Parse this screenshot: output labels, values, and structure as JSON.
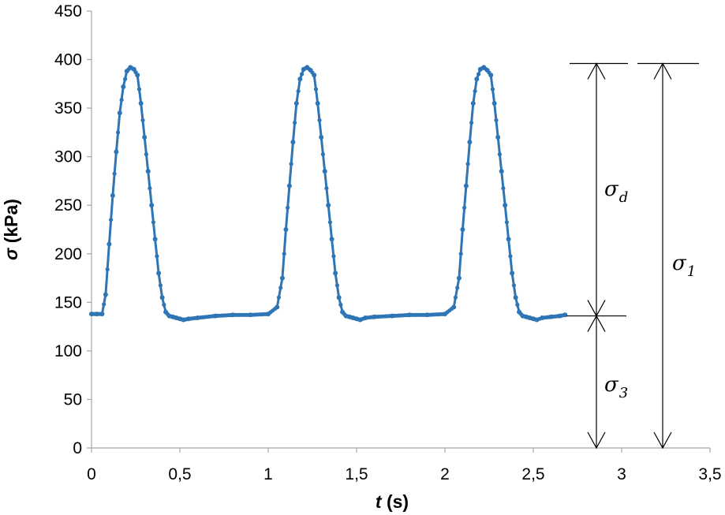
{
  "chart_data": {
    "type": "line",
    "title": "",
    "xlabel": {
      "var": "t",
      "unit": " (s)"
    },
    "ylabel": {
      "var": "σ",
      "unit": " (kPa)"
    },
    "xlim": [
      0,
      3.5
    ],
    "ylim": [
      0,
      450
    ],
    "x_ticks": [
      "0",
      "0,5",
      "1",
      "1,5",
      "2",
      "2,5",
      "3",
      "3,5"
    ],
    "y_ticks": [
      "0",
      "50",
      "100",
      "150",
      "200",
      "250",
      "300",
      "350",
      "400",
      "450"
    ],
    "grid": false,
    "legend": "none",
    "colors": {
      "series": "#2e75b6",
      "axes": "#a6a6a6",
      "annotation": "#000000"
    },
    "series": [
      {
        "marker": "circle",
        "x": [
          0,
          0.03,
          0.06,
          0.08,
          0.1,
          0.12,
          0.14,
          0.16,
          0.18,
          0.2,
          0.22,
          0.24,
          0.26,
          0.28,
          0.3,
          0.32,
          0.34,
          0.36,
          0.38,
          0.4,
          0.42,
          0.44,
          0.46,
          0.48,
          0.5,
          0.52,
          0.55,
          0.6,
          0.7,
          0.8,
          0.9,
          1.0,
          1.05,
          1.08,
          1.1,
          1.12,
          1.14,
          1.16,
          1.18,
          1.2,
          1.22,
          1.24,
          1.26,
          1.28,
          1.3,
          1.32,
          1.34,
          1.36,
          1.38,
          1.4,
          1.42,
          1.44,
          1.46,
          1.48,
          1.5,
          1.52,
          1.55,
          1.6,
          1.7,
          1.8,
          1.9,
          2.0,
          2.05,
          2.08,
          2.1,
          2.12,
          2.14,
          2.16,
          2.18,
          2.2,
          2.22,
          2.24,
          2.26,
          2.28,
          2.3,
          2.32,
          2.34,
          2.36,
          2.38,
          2.4,
          2.42,
          2.44,
          2.46,
          2.48,
          2.5,
          2.52,
          2.55,
          2.6,
          2.65,
          2.68
        ],
        "y": [
          138,
          138,
          138,
          158,
          210,
          260,
          305,
          345,
          372,
          388,
          392,
          390,
          384,
          355,
          320,
          285,
          250,
          215,
          180,
          155,
          140,
          136,
          135,
          134,
          133,
          132,
          133,
          134,
          136,
          137,
          137,
          138,
          145,
          175,
          225,
          270,
          315,
          355,
          380,
          390,
          392,
          389,
          384,
          355,
          320,
          285,
          250,
          215,
          180,
          155,
          140,
          136,
          135,
          134,
          133,
          132,
          134,
          135,
          136,
          137,
          137,
          138,
          145,
          175,
          225,
          270,
          315,
          355,
          380,
          390,
          392,
          389,
          384,
          355,
          320,
          285,
          250,
          215,
          180,
          155,
          140,
          136,
          135,
          134,
          133,
          132,
          134,
          135,
          136,
          137
        ]
      }
    ],
    "annotations": [
      {
        "base": "σ",
        "sub": "d",
        "sub_italic": true
      },
      {
        "base": "σ",
        "sub": "1",
        "sub_italic": false
      },
      {
        "base": "σ",
        "sub": "3",
        "sub_italic": true
      }
    ]
  }
}
